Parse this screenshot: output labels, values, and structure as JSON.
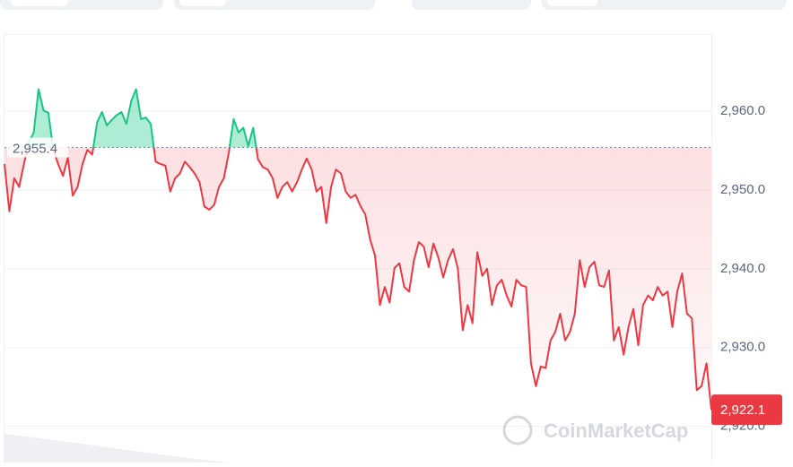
{
  "chart_data": {
    "type": "line",
    "values": [
      2953.3,
      2947.3,
      2951.5,
      2950.4,
      2953.3,
      2956.1,
      2957.3,
      2962.8,
      2960.1,
      2959.8,
      2955.2,
      2953.3,
      2951.8,
      2954.1,
      2949.3,
      2950.4,
      2953.3,
      2955.1,
      2954.5,
      2958.6,
      2959.9,
      2958.2,
      2958.9,
      2959.5,
      2959.9,
      2958.4,
      2961.3,
      2962.8,
      2959.0,
      2959.2,
      2958.4,
      2953.6,
      2953.3,
      2953.1,
      2949.8,
      2951.5,
      2952.1,
      2953.6,
      2952.9,
      2952.1,
      2951.0,
      2947.9,
      2947.5,
      2948.1,
      2950.4,
      2951.5,
      2954.7,
      2959.0,
      2957.3,
      2957.9,
      2955.6,
      2957.9,
      2953.9,
      2952.9,
      2952.6,
      2951.5,
      2949.0,
      2950.4,
      2951.0,
      2949.8,
      2951.0,
      2952.6,
      2954.0,
      2952.6,
      2949.8,
      2950.4,
      2945.8,
      2950.4,
      2952.6,
      2952.1,
      2949.8,
      2949.0,
      2949.4,
      2948.0,
      2946.9,
      2943.7,
      2941.7,
      2935.4,
      2937.7,
      2935.7,
      2940.1,
      2940.7,
      2937.7,
      2937.1,
      2941.1,
      2943.4,
      2942.8,
      2940.2,
      2943.2,
      2941.4,
      2938.9,
      2941.1,
      2942.5,
      2940.0,
      2932.2,
      2935.4,
      2933.1,
      2942.1,
      2939.1,
      2940.0,
      2935.4,
      2937.9,
      2938.6,
      2936.6,
      2935.2,
      2938.6,
      2937.9,
      2937.7,
      2928.0,
      2925.1,
      2927.6,
      2927.4,
      2930.9,
      2932.0,
      2934.3,
      2930.9,
      2932.0,
      2934.3,
      2941.1,
      2937.7,
      2940.2,
      2940.9,
      2937.9,
      2937.7,
      2939.8,
      2930.9,
      2932.6,
      2929.1,
      2932.6,
      2934.9,
      2930.3,
      2935.4,
      2936.6,
      2936.0,
      2937.7,
      2936.6,
      2937.1,
      2932.6,
      2937.1,
      2939.4,
      2934.3,
      2933.7,
      2924.6,
      2925.1,
      2928.0,
      2922.1
    ],
    "up_color": "#16c784",
    "down_color": "#ea3943",
    "baseline": {
      "value": 2955.4,
      "label": "2,955.4"
    },
    "last_price": {
      "value": 2922.1,
      "label": "2,922.1"
    },
    "ylim": [
      2915.4,
      2969.8
    ],
    "yticks": [
      {
        "value": 2920,
        "label": "2,920.0"
      },
      {
        "value": 2930,
        "label": "2,930.0"
      },
      {
        "value": 2940,
        "label": "2,940.0"
      },
      {
        "value": 2950,
        "label": "2,950.0"
      },
      {
        "value": 2960,
        "label": "2,960.0"
      }
    ],
    "grid": true,
    "watermark": "CoinMarketCap"
  }
}
